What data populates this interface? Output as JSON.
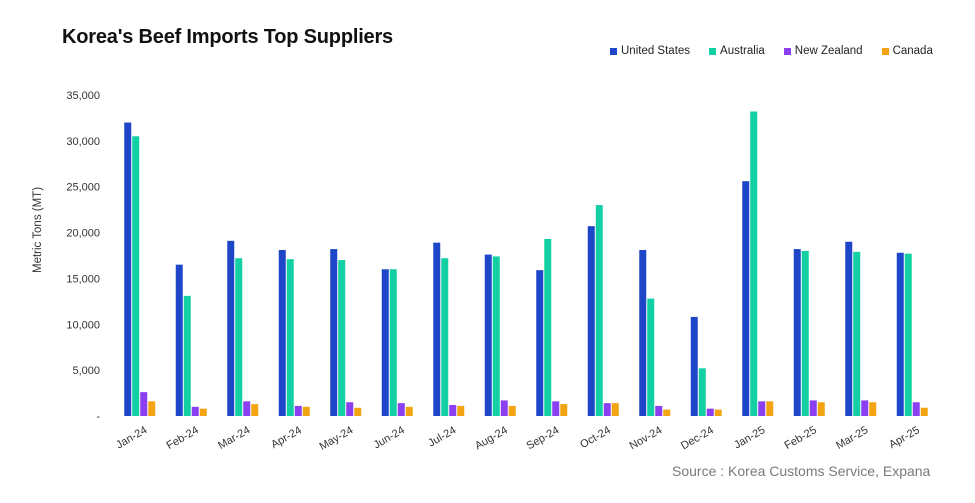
{
  "chart_data": {
    "type": "bar",
    "title": "Korea's Beef Imports Top Suppliers",
    "ylabel": "Metric Tons (MT)",
    "xlabel": "",
    "ylim": [
      0,
      35000
    ],
    "yticks": [
      "-",
      "5,000",
      "10,000",
      "15,000",
      "20,000",
      "25,000",
      "30,000",
      "35,000"
    ],
    "legend_position": "top-right",
    "grid": false,
    "categories": [
      "Jan-24",
      "Feb-24",
      "Mar-24",
      "Apr-24",
      "May-24",
      "Jun-24",
      "Jul-24",
      "Aug-24",
      "Sep-24",
      "Oct-24",
      "Nov-24",
      "Dec-24",
      "Jan-25",
      "Feb-25",
      "Mar-25",
      "Apr-25"
    ],
    "series": [
      {
        "name": "United States",
        "color": "#1e46c8",
        "values": [
          32000,
          16500,
          19100,
          18100,
          18200,
          16000,
          18900,
          17600,
          15900,
          20700,
          18100,
          10800,
          25600,
          18200,
          19000,
          17800
        ]
      },
      {
        "name": "Australia",
        "color": "#12d0a4",
        "values": [
          30500,
          13100,
          17200,
          17100,
          17000,
          16000,
          17200,
          17400,
          19300,
          23000,
          12800,
          5200,
          33200,
          18000,
          17900,
          17700
        ]
      },
      {
        "name": "New Zealand",
        "color": "#8a3ff0",
        "values": [
          2600,
          1000,
          1600,
          1100,
          1500,
          1400,
          1200,
          1700,
          1600,
          1400,
          1100,
          800,
          1600,
          1700,
          1700,
          1500
        ]
      },
      {
        "name": "Canada",
        "color": "#f2a412",
        "values": [
          1600,
          800,
          1300,
          1000,
          900,
          1000,
          1100,
          1100,
          1300,
          1400,
          700,
          700,
          1600,
          1500,
          1500,
          900
        ]
      }
    ]
  },
  "source": "Source : Korea Customs Service, Expana"
}
